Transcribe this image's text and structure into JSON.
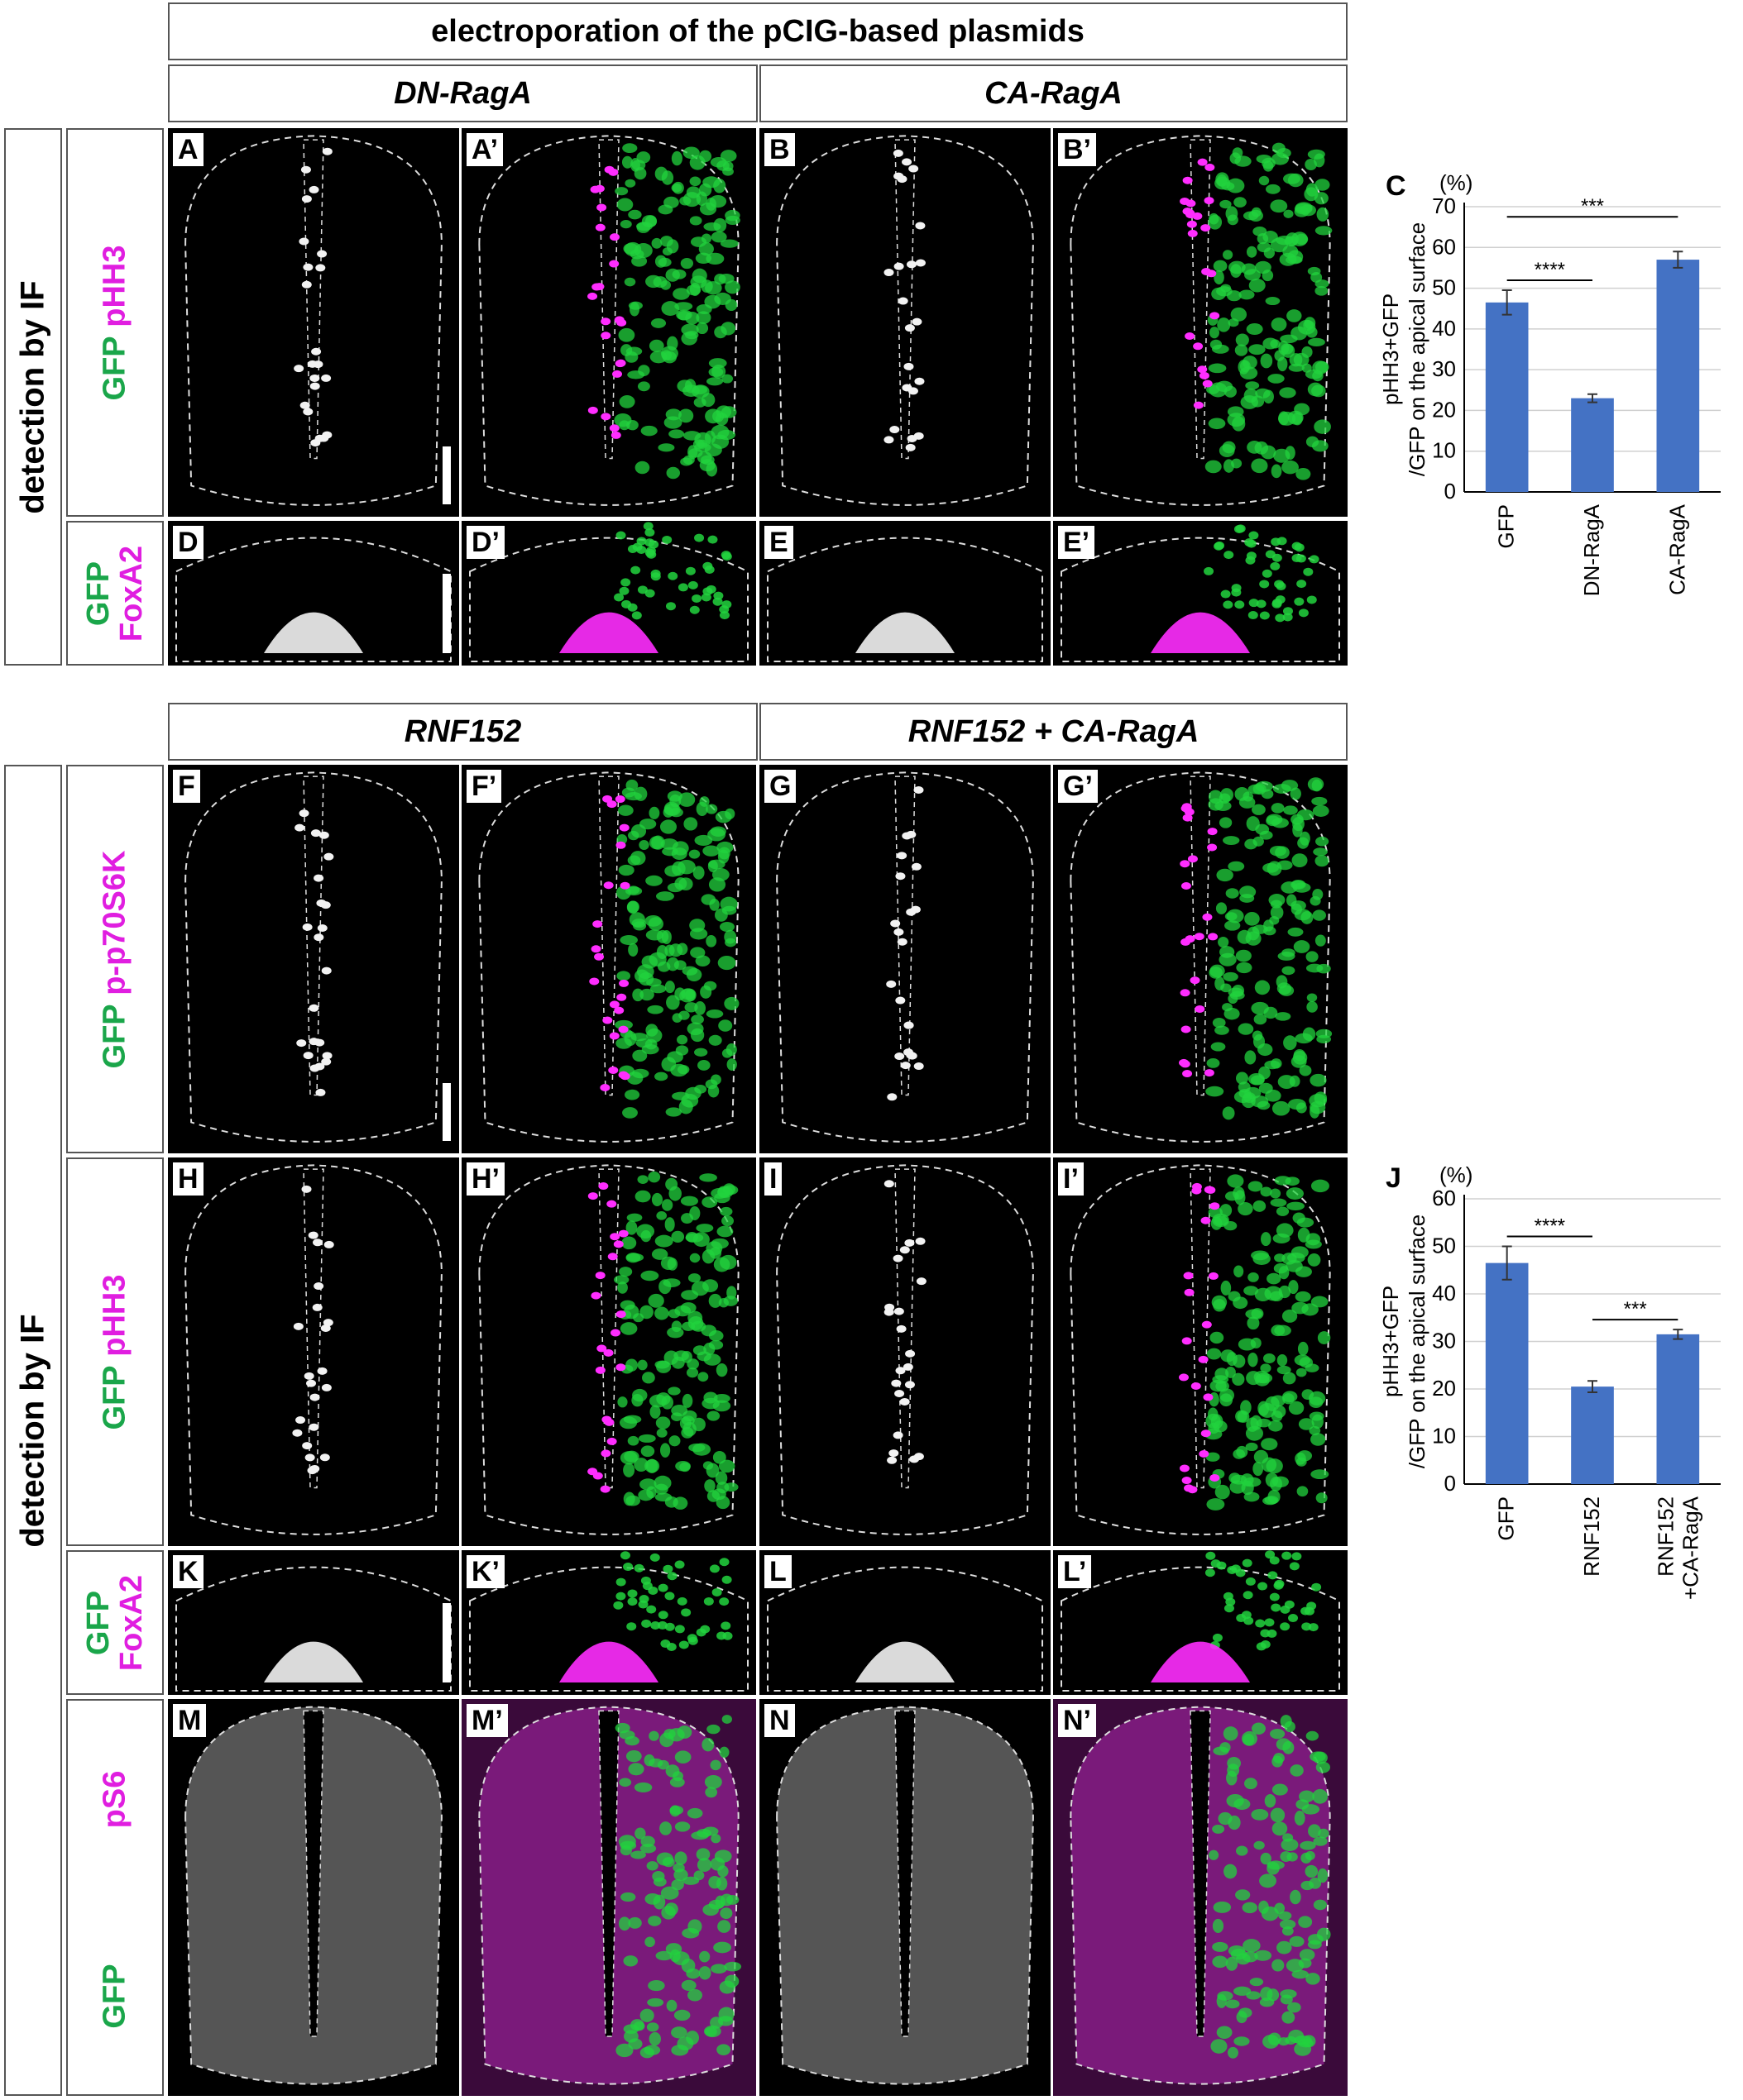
{
  "headers": {
    "top": "electroporation of the pCIG-based plasmids",
    "dn_raga": "DN-RagA",
    "ca_raga": "CA-RagA",
    "rnf152": "RNF152",
    "rnf152_ca": "RNF152 + CA-RagA"
  },
  "side_labels": {
    "upper": "detection by IF",
    "lower": "detection by IF"
  },
  "markers": {
    "gfp": "GFP",
    "phh3": "pHH3",
    "foxa2": "FoxA2",
    "p70": "p-p70S6K",
    "ps6": "pS6"
  },
  "panels": {
    "A": "A",
    "A2": "A’",
    "B": "B",
    "B2": "B’",
    "D": "D",
    "D2": "D’",
    "E": "E",
    "E2": "E’",
    "F": "F",
    "F2": "F’",
    "G": "G",
    "G2": "G’",
    "H": "H",
    "H2": "H’",
    "I": "I",
    "I2": "I’",
    "K": "K",
    "K2": "K’",
    "L": "L",
    "L2": "L’",
    "M": "M",
    "M2": "M’",
    "N": "N",
    "N2": "N’",
    "C": "C",
    "J": "J"
  },
  "colors": {
    "gfp": "#1aa64a",
    "magenta": "#e01ee0",
    "bar": "#4472c4"
  },
  "chart_data": [
    {
      "panel": "C",
      "type": "bar",
      "categories": [
        "GFP",
        "DN-RagA",
        "CA-RagA"
      ],
      "values": [
        46.5,
        23,
        57
      ],
      "errors": [
        3,
        1,
        2
      ],
      "unit": "(%)",
      "ylabel": "pHH3+GFP /GFP on the apical surface",
      "ylim": [
        0,
        70
      ],
      "yticks": [
        0,
        10,
        20,
        30,
        40,
        50,
        60,
        70
      ],
      "significance": [
        {
          "from": 0,
          "to": 1,
          "label": "****"
        },
        {
          "from": 0,
          "to": 2,
          "label": "***"
        }
      ]
    },
    {
      "panel": "J",
      "type": "bar",
      "categories": [
        "GFP",
        "RNF152",
        "RNF152 +CA-RagA"
      ],
      "values": [
        46.5,
        20.5,
        31.5
      ],
      "errors": [
        3.5,
        1.2,
        1
      ],
      "unit": "(%)",
      "ylabel": "pHH3+GFP /GFP on the apical surface",
      "ylim": [
        0,
        60
      ],
      "yticks": [
        0,
        10,
        20,
        30,
        40,
        50,
        60
      ],
      "significance": [
        {
          "from": 0,
          "to": 1,
          "label": "****"
        },
        {
          "from": 1,
          "to": 2,
          "label": "***"
        }
      ]
    }
  ]
}
